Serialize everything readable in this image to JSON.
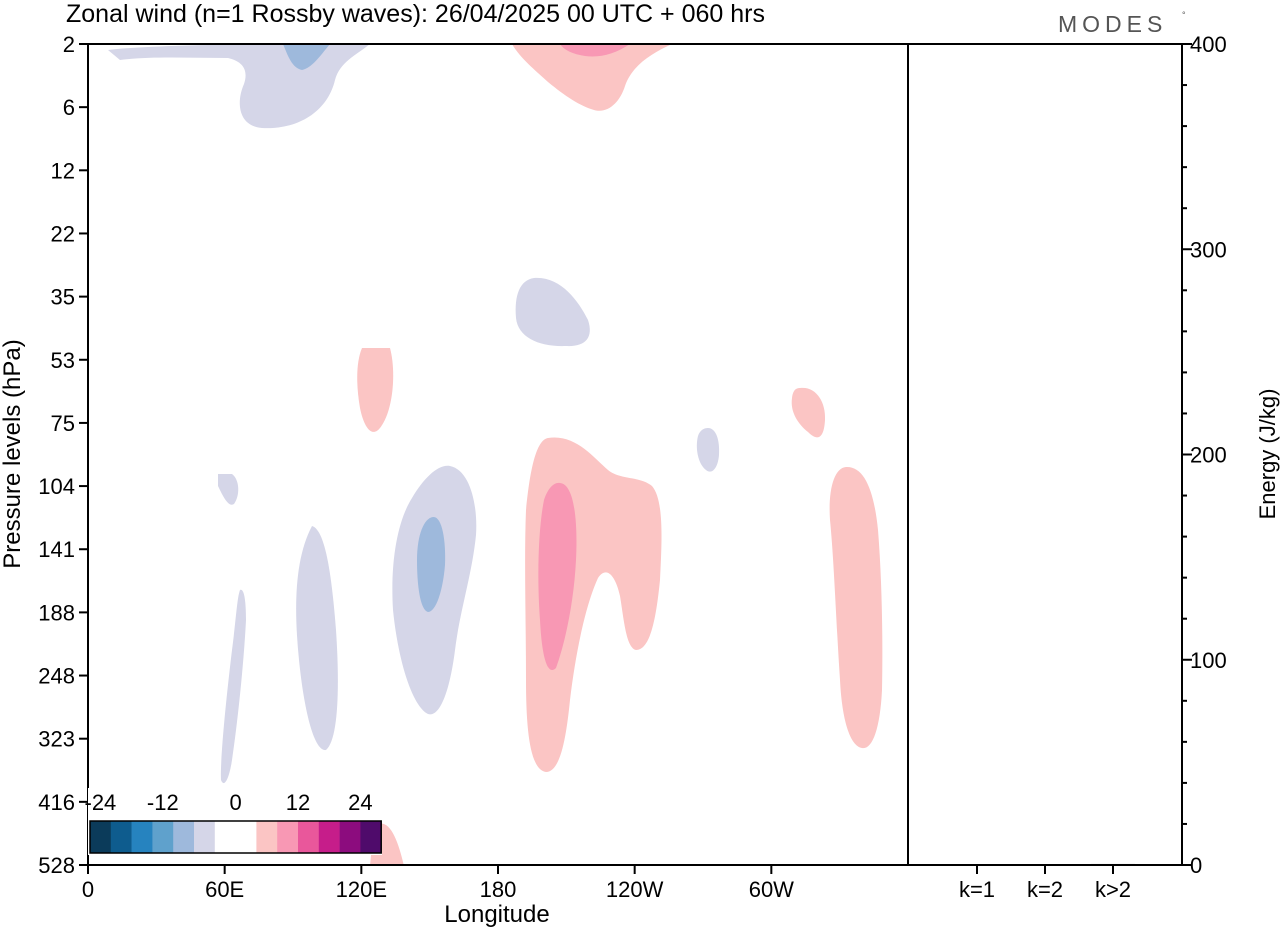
{
  "title": "Zonal wind (n=1 Rossby waves):  26/04/2025  00 UTC  + 060 hrs",
  "brand": {
    "text": "MODES",
    "mark": "°"
  },
  "chart_data": [
    {
      "type": "heatmap",
      "name": "zonal-wind-cross-section",
      "xlabel": "Longitude",
      "ylabel": "Pressure levels (hPa)",
      "x_ticks": [
        "0",
        "60E",
        "120E",
        "180",
        "120W",
        "60W"
      ],
      "x_tick_values": [
        0,
        60,
        120,
        180,
        240,
        300
      ],
      "xlim": [
        0,
        360
      ],
      "y_ticks": [
        "2",
        "6",
        "12",
        "22",
        "35",
        "53",
        "75",
        "104",
        "141",
        "188",
        "248",
        "323",
        "416",
        "528"
      ],
      "y_scale": "levels",
      "colorbar": {
        "ticks": [
          "-24",
          "-12",
          "0",
          "12",
          "24"
        ],
        "colors": [
          "#0b3b5a",
          "#0e5c8e",
          "#2683bf",
          "#5fa1cc",
          "#9eb9dc",
          "#d5d6e8",
          "#ffffff",
          "#ffffff",
          "#fbc5c4",
          "#f898b4",
          "#e9579b",
          "#c61d8a",
          "#8c0c7e",
          "#4f0b6b"
        ]
      },
      "features": [
        {
          "sign": "negative",
          "level": "weak",
          "lon_range": [
            10,
            120
          ],
          "p_range": [
            2,
            8
          ]
        },
        {
          "sign": "negative",
          "level": "moderate",
          "lon_range": [
            86,
            103
          ],
          "p_range": [
            2,
            4
          ]
        },
        {
          "sign": "positive",
          "level": "weak",
          "lon_range": [
            187,
            260
          ],
          "p_range": [
            2,
            7
          ]
        },
        {
          "sign": "positive",
          "level": "moderate",
          "lon_range": [
            205,
            237
          ],
          "p_range": [
            2,
            3
          ]
        },
        {
          "sign": "negative",
          "level": "weak",
          "lon_range": [
            188,
            219
          ],
          "p_range": [
            33,
            51
          ]
        },
        {
          "sign": "positive",
          "level": "weak",
          "lon_range": [
            120,
            135
          ],
          "p_range": [
            52,
            79
          ]
        },
        {
          "sign": "negative",
          "level": "weak",
          "lon_range": [
            250,
            260
          ],
          "p_range": [
            80,
            96
          ]
        },
        {
          "sign": "positive",
          "level": "weak",
          "lon_range": [
            308,
            325
          ],
          "p_range": [
            65,
            82
          ]
        },
        {
          "sign": "negative",
          "level": "weak",
          "lon_range": [
            55,
            65
          ],
          "p_range": [
            95,
            112
          ]
        },
        {
          "sign": "negative",
          "level": "weak",
          "lon_range": [
            57,
            70
          ],
          "p_range": [
            190,
            420
          ]
        },
        {
          "sign": "negative",
          "level": "weak",
          "lon_range": [
            91,
            110
          ],
          "p_range": [
            130,
            310
          ]
        },
        {
          "sign": "negative",
          "level": "weak",
          "lon_range": [
            135,
            170
          ],
          "p_range": [
            94,
            282
          ]
        },
        {
          "sign": "negative",
          "level": "moderate",
          "lon_range": [
            146,
            158
          ],
          "p_range": [
            127,
            180
          ]
        },
        {
          "sign": "positive",
          "level": "weak",
          "lon_range": [
            180,
            252
          ],
          "p_range": [
            82,
            365
          ]
        },
        {
          "sign": "positive",
          "level": "moderate",
          "lon_range": [
            188,
            206
          ],
          "p_range": [
            105,
            235
          ]
        },
        {
          "sign": "positive",
          "level": "weak",
          "lon_range": [
            326,
            350
          ],
          "p_range": [
            94,
            318
          ]
        },
        {
          "sign": "positive",
          "level": "weak",
          "lon_range": [
            127,
            139
          ],
          "p_range": [
            460,
            528
          ]
        }
      ]
    },
    {
      "type": "bar",
      "name": "energy-spectrum",
      "categories": [
        "k=1",
        "k=2",
        "k>2"
      ],
      "values": [
        0.2,
        0.2,
        0.5
      ],
      "ylabel": "Energy (J/kg)",
      "y_ticks": [
        "0",
        "100",
        "200",
        "300",
        "400"
      ],
      "ylim": [
        0,
        400
      ]
    }
  ]
}
